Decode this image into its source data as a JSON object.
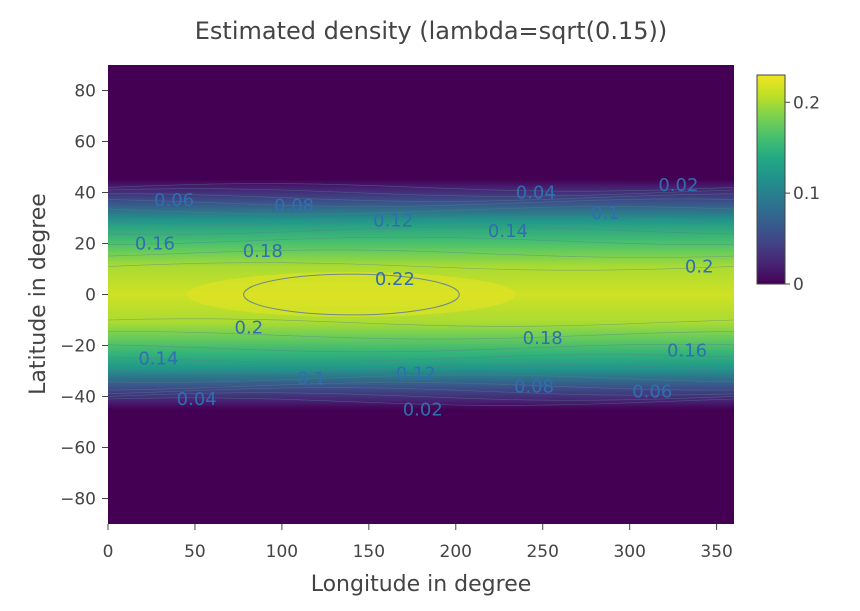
{
  "chart_data": {
    "type": "heatmap",
    "title": "Estimated density (lambda=sqrt(0.15))",
    "xlabel": "Longitude in degree",
    "ylabel": "Latitude in degree",
    "xlim": [
      0,
      360
    ],
    "ylim": [
      -90,
      90
    ],
    "x_ticks": [
      0,
      50,
      100,
      150,
      200,
      250,
      300,
      350
    ],
    "y_ticks": [
      -80,
      -60,
      -40,
      -20,
      0,
      20,
      40,
      60,
      80
    ],
    "colorscale": "Viridis",
    "zlim": [
      0,
      0.23
    ],
    "colorbar_ticks": [
      0,
      0.1,
      0.2
    ],
    "density_profile_by_latitude": [
      {
        "lat": 45,
        "value": 0
      },
      {
        "lat": 42,
        "value": 0.02
      },
      {
        "lat": 36,
        "value": 0.06
      },
      {
        "lat": 29,
        "value": 0.12
      },
      {
        "lat": 21,
        "value": 0.16
      },
      {
        "lat": 16,
        "value": 0.18
      },
      {
        "lat": 11,
        "value": 0.2
      },
      {
        "lat": 0,
        "value": 0.215
      },
      {
        "lat": -11,
        "value": 0.2
      },
      {
        "lat": -16,
        "value": 0.18
      },
      {
        "lat": -23,
        "value": 0.15
      },
      {
        "lat": -29,
        "value": 0.12
      },
      {
        "lat": -36,
        "value": 0.06
      },
      {
        "lat": -42,
        "value": 0.02
      },
      {
        "lat": -45,
        "value": 0
      }
    ],
    "peak": {
      "lon": 140,
      "lat": 0,
      "value": 0.225
    },
    "contour_levels": [
      0.02,
      0.04,
      0.06,
      0.08,
      0.1,
      0.12,
      0.14,
      0.16,
      0.18,
      0.2,
      0.22
    ],
    "contour_labels": [
      {
        "text": "0.06",
        "lon": 38,
        "lat": 37
      },
      {
        "text": "0.08",
        "lon": 107,
        "lat": 35
      },
      {
        "text": "0.12",
        "lon": 164,
        "lat": 29
      },
      {
        "text": "0.04",
        "lon": 246,
        "lat": 40
      },
      {
        "text": "0.02",
        "lon": 328,
        "lat": 43
      },
      {
        "text": "0.1",
        "lon": 286,
        "lat": 32
      },
      {
        "text": "0.14",
        "lon": 230,
        "lat": 25
      },
      {
        "text": "0.16",
        "lon": 27,
        "lat": 20
      },
      {
        "text": "0.18",
        "lon": 89,
        "lat": 17
      },
      {
        "text": "0.2",
        "lon": 340,
        "lat": 11
      },
      {
        "text": "0.22",
        "lon": 165,
        "lat": 6
      },
      {
        "text": "0.2",
        "lon": 81,
        "lat": -13
      },
      {
        "text": "0.18",
        "lon": 250,
        "lat": -17
      },
      {
        "text": "0.16",
        "lon": 333,
        "lat": -22
      },
      {
        "text": "0.14",
        "lon": 29,
        "lat": -25
      },
      {
        "text": "0.1",
        "lon": 117,
        "lat": -33
      },
      {
        "text": "0.12",
        "lon": 177,
        "lat": -31
      },
      {
        "text": "0.08",
        "lon": 245,
        "lat": -36
      },
      {
        "text": "0.06",
        "lon": 313,
        "lat": -38
      },
      {
        "text": "0.04",
        "lon": 51,
        "lat": -41
      },
      {
        "text": "0.02",
        "lon": 181,
        "lat": -45
      }
    ]
  }
}
